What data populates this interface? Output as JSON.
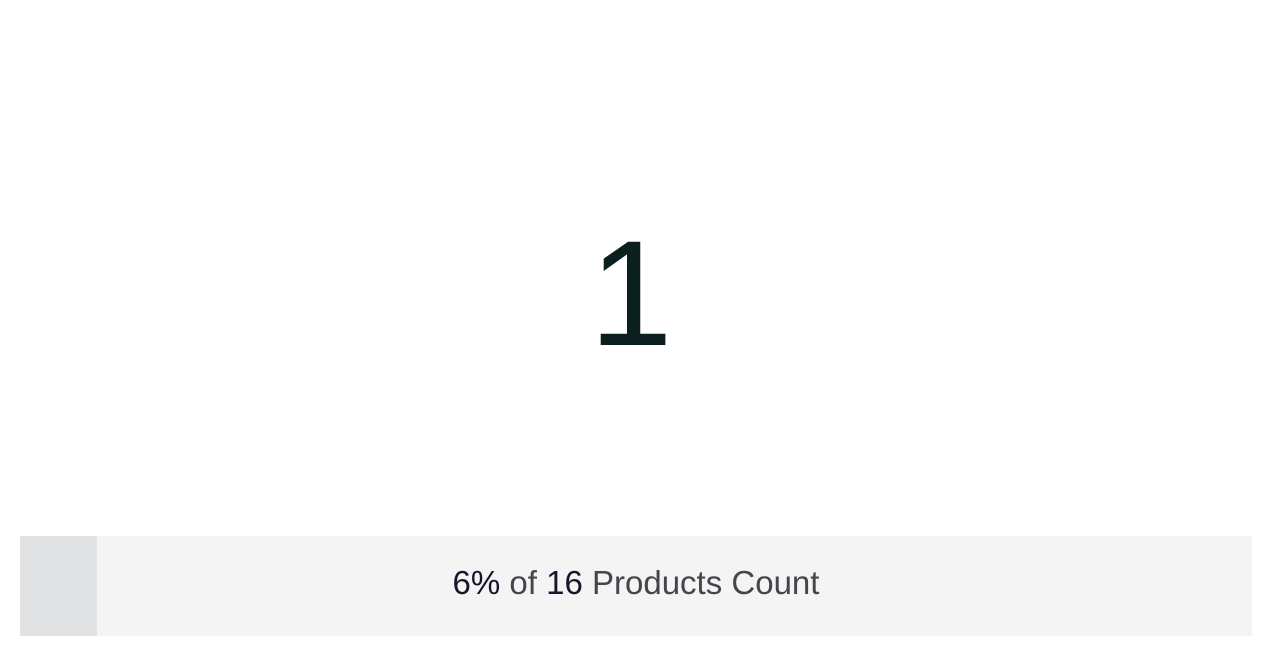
{
  "kpi": {
    "value": "1"
  },
  "progress": {
    "fraction": 0.0625,
    "percent_label": "6%",
    "of_text": "of",
    "total": "16",
    "metric_label": "Products Count",
    "fill_color": "#e1e2e4",
    "track_color": "#f4f4f4"
  }
}
